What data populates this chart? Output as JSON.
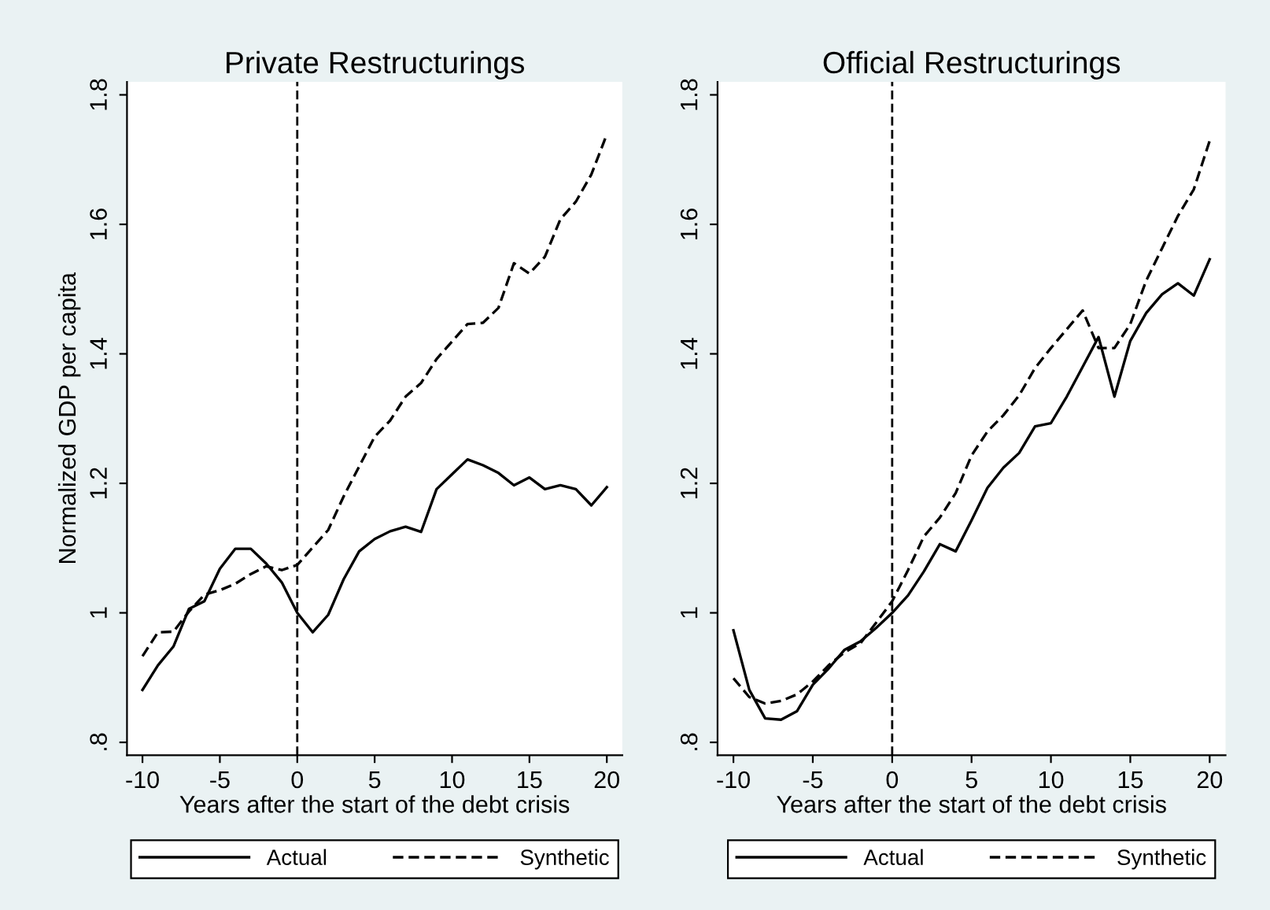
{
  "chart_data": [
    {
      "type": "line",
      "title": "Private Restructurings",
      "xlabel": "Years after the start of the debt crisis",
      "ylabel": "Normalized GDP per capita",
      "x": [
        -10,
        -9,
        -8,
        -7,
        -6,
        -5,
        -4,
        -3,
        -2,
        -1,
        0,
        1,
        2,
        3,
        4,
        5,
        6,
        7,
        8,
        9,
        10,
        11,
        12,
        13,
        14,
        15,
        16,
        17,
        18,
        19,
        20
      ],
      "series": [
        {
          "name": "Actual",
          "color": "#000000",
          "line_style": "solid",
          "values": [
            0.881,
            0.919,
            0.948,
            1.006,
            1.018,
            1.068,
            1.099,
            1.099,
            1.076,
            1.047,
            1.0,
            0.97,
            0.997,
            1.052,
            1.095,
            1.114,
            1.126,
            1.133,
            1.125,
            1.191,
            1.214,
            1.237,
            1.228,
            1.216,
            1.197,
            1.209,
            1.191,
            1.197,
            1.191,
            1.166,
            1.194
          ]
        },
        {
          "name": "Synthetic",
          "color": "#000000",
          "line_style": "dashed",
          "values": [
            0.933,
            0.97,
            0.971,
            1.002,
            1.028,
            1.035,
            1.045,
            1.06,
            1.072,
            1.066,
            1.074,
            1.101,
            1.128,
            1.18,
            1.226,
            1.272,
            1.297,
            1.334,
            1.355,
            1.392,
            1.419,
            1.446,
            1.448,
            1.471,
            1.54,
            1.524,
            1.55,
            1.608,
            1.635,
            1.677,
            1.739
          ]
        }
      ],
      "xlim": [
        -11,
        21
      ],
      "xticks": [
        -10,
        -5,
        0,
        5,
        10,
        15,
        20
      ],
      "ylim": [
        0.78,
        1.82
      ],
      "yticks": [
        {
          "value": 0.8,
          "label": ".8"
        },
        1,
        1.2,
        1.4,
        1.6,
        1.8
      ],
      "ref_lines": [
        {
          "axis": "x",
          "value": 0,
          "color": "#000000",
          "line_style": "dashed"
        }
      ],
      "grid": false,
      "legend": "bottom"
    },
    {
      "type": "line",
      "title": "Official Restructurings",
      "xlabel": "Years after the start of the debt crisis",
      "x": [
        -10,
        -9,
        -8,
        -7,
        -6,
        -5,
        -4,
        -3,
        -2,
        -1,
        0,
        1,
        2,
        3,
        4,
        5,
        6,
        7,
        8,
        9,
        10,
        11,
        12,
        13,
        14,
        15,
        16,
        17,
        18,
        19,
        20
      ],
      "series": [
        {
          "name": "Actual",
          "color": "#000000",
          "line_style": "solid",
          "values": [
            0.973,
            0.881,
            0.837,
            0.835,
            0.848,
            0.889,
            0.914,
            0.943,
            0.956,
            0.977,
            1.0,
            1.027,
            1.064,
            1.106,
            1.095,
            1.143,
            1.193,
            1.224,
            1.247,
            1.288,
            1.293,
            1.334,
            1.38,
            1.426,
            1.334,
            1.42,
            1.463,
            1.492,
            1.509,
            1.49,
            1.546
          ]
        },
        {
          "name": "Synthetic",
          "color": "#000000",
          "line_style": "dashed",
          "values": [
            0.899,
            0.87,
            0.86,
            0.864,
            0.874,
            0.894,
            0.919,
            0.939,
            0.953,
            0.985,
            1.018,
            1.066,
            1.118,
            1.147,
            1.185,
            1.243,
            1.28,
            1.305,
            1.336,
            1.378,
            1.409,
            1.438,
            1.467,
            1.409,
            1.409,
            1.446,
            1.513,
            1.563,
            1.613,
            1.654,
            1.729
          ]
        }
      ],
      "xlim": [
        -11,
        21
      ],
      "xticks": [
        -10,
        -5,
        0,
        5,
        10,
        15,
        20
      ],
      "ylim": [
        0.78,
        1.82
      ],
      "yticks": [
        {
          "value": 0.8,
          "label": ".8"
        },
        1,
        1.2,
        1.4,
        1.6,
        1.8
      ],
      "ref_lines": [
        {
          "axis": "x",
          "value": 0,
          "color": "#000000",
          "line_style": "dashed"
        }
      ],
      "grid": false,
      "legend": "bottom"
    }
  ]
}
